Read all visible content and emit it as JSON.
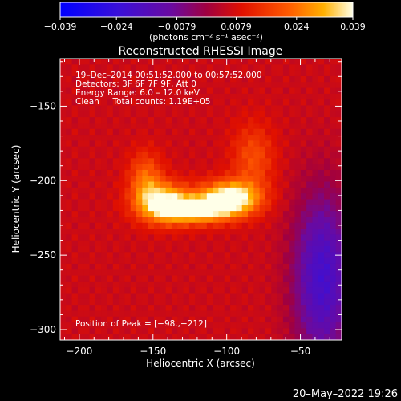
{
  "chart_data": {
    "type": "heatmap",
    "title": "Reconstructed RHESSI Image",
    "xlabel": "Heliocentric X (arcsec)",
    "ylabel": "Heliocentric Y (arcsec)",
    "xlim": [
      -213,
      -22
    ],
    "ylim": [
      -307,
      -118
    ],
    "x_ticks": [
      -200,
      -150,
      -100,
      -50
    ],
    "y_ticks": [
      -150,
      -200,
      -250,
      -300
    ],
    "colorbar": {
      "range": [
        -0.039,
        0.039
      ],
      "tick_values": [
        -0.039,
        -0.024,
        -0.0079,
        0.0079,
        0.024,
        0.039
      ],
      "tick_labels": [
        "−0.039",
        "−0.024",
        "−0.0079",
        "0.0079",
        "0.024",
        "0.039"
      ],
      "label": "(photons cm⁻² s⁻¹ asec⁻²)"
    },
    "info_lines": [
      "19–Dec–2014 00:51:52.000 to 00:57:52.000",
      "Detectors: 3F 6F 7F 9F, Att 0",
      "Energy Range: 6.0 – 12.0 keV",
      "Clean     Total counts: 1.19E+05"
    ],
    "peak_label": "Position of Peak = [−98.,−212]",
    "peak": [
      -98,
      -212
    ],
    "sources": [
      {
        "x": -98,
        "y": -212,
        "sx": 14,
        "sy": 8,
        "amp": 0.039
      },
      {
        "x": -143,
        "y": -215,
        "sx": 13,
        "sy": 9,
        "amp": 0.034
      },
      {
        "x": -120,
        "y": -220,
        "sx": 15,
        "sy": 6,
        "amp": 0.028
      },
      {
        "x": -155,
        "y": -198,
        "sx": 8,
        "sy": 12,
        "amp": 0.016
      },
      {
        "x": -82,
        "y": -185,
        "sx": 10,
        "sy": 16,
        "amp": 0.013
      }
    ],
    "background": 0.0062,
    "negative_region": {
      "x": -35,
      "y": -265,
      "sx": 14,
      "sy": 40,
      "amp": -0.026
    },
    "date_stamp": "20–May–2022 19:26"
  }
}
